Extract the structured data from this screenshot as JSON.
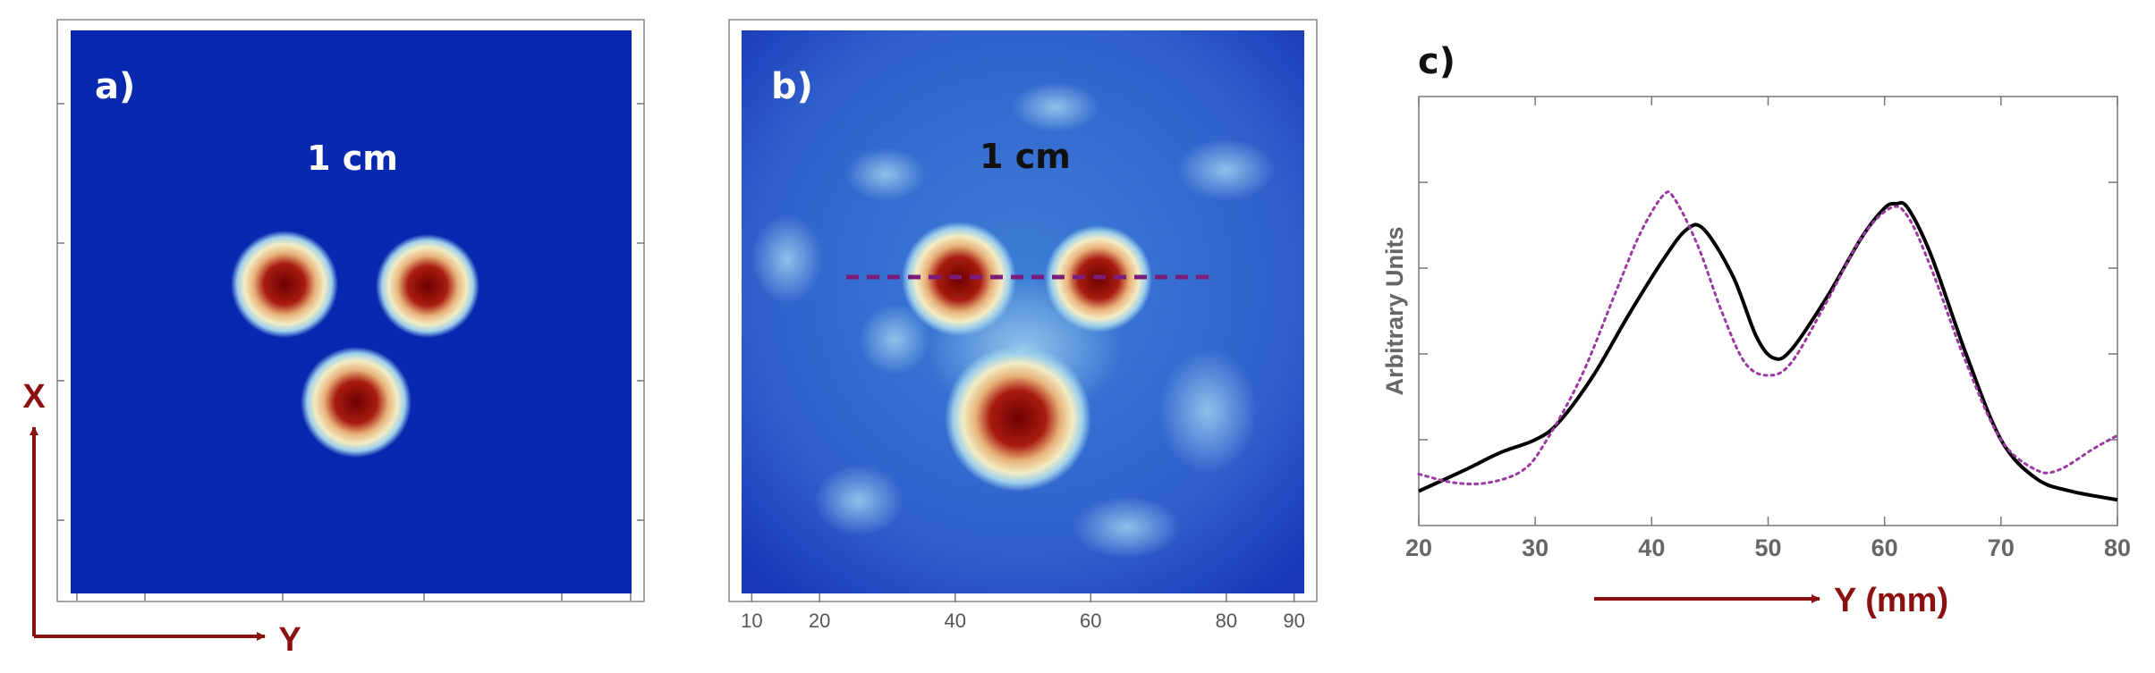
{
  "panels": {
    "a": {
      "label": "a)",
      "scale_text": "1 cm",
      "scale_color": "#ffffff"
    },
    "b": {
      "label": "b)",
      "scale_text": "1 cm",
      "scale_color": "#111111",
      "x_ticks": [
        "10",
        "20",
        "40",
        "60",
        "80",
        "90"
      ],
      "x_tick_values": [
        10,
        20,
        40,
        60,
        80,
        90
      ],
      "x_range": [
        8.5,
        91.5
      ],
      "line_profile_color": "#7a1d7a"
    },
    "c": {
      "label": "c)"
    }
  },
  "axis_arrows": {
    "x_label": "X",
    "y_label": "Y",
    "color": "#8b1010"
  },
  "chart_data": {
    "type": "line",
    "title": "",
    "xlabel": "Y (mm)",
    "ylabel": "Arbitrary Units",
    "xlim": [
      20,
      80
    ],
    "ylim": [
      0,
      1
    ],
    "x_ticks": [
      "20",
      "30",
      "40",
      "50",
      "60",
      "70",
      "80"
    ],
    "grid": false,
    "series": [
      {
        "style": "solid",
        "color": "#000000",
        "x": [
          20,
          24,
          27,
          30,
          32,
          35,
          38,
          41,
          43,
          44.5,
          47,
          49,
          50.5,
          52,
          55,
          58,
          60,
          61,
          62,
          64,
          67,
          70,
          73,
          76,
          80
        ],
        "y": [
          0.08,
          0.13,
          0.17,
          0.2,
          0.24,
          0.35,
          0.49,
          0.62,
          0.69,
          0.69,
          0.58,
          0.44,
          0.39,
          0.41,
          0.53,
          0.67,
          0.74,
          0.75,
          0.74,
          0.63,
          0.4,
          0.2,
          0.11,
          0.08,
          0.06
        ]
      },
      {
        "style": "dotted",
        "color": "#9a3aa0",
        "x": [
          20,
          23,
          26,
          29,
          31,
          34,
          37,
          39,
          41,
          42,
          44,
          46,
          48,
          50,
          52,
          55,
          58,
          60.5,
          62,
          64,
          67,
          70,
          73,
          75,
          78,
          80
        ],
        "y": [
          0.12,
          0.1,
          0.1,
          0.13,
          0.2,
          0.35,
          0.55,
          0.68,
          0.77,
          0.76,
          0.65,
          0.5,
          0.38,
          0.35,
          0.38,
          0.52,
          0.67,
          0.74,
          0.72,
          0.6,
          0.38,
          0.2,
          0.13,
          0.13,
          0.18,
          0.21
        ]
      }
    ]
  }
}
